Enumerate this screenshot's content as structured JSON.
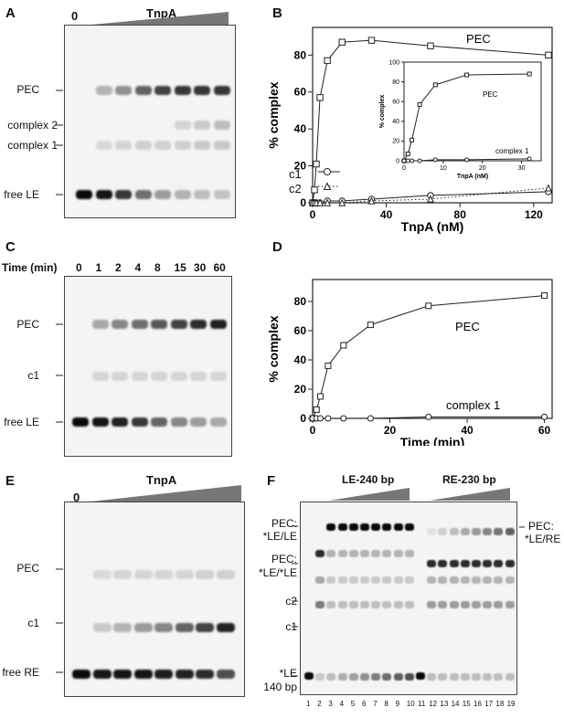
{
  "panels": {
    "A": {
      "letter": "A",
      "zero": "0",
      "protein": "TnpA",
      "bands": {
        "pec": "PEC",
        "complex2": "complex 2",
        "complex1": "complex 1",
        "free": "free LE"
      },
      "band_levels": {
        "pec": [
          0,
          0.25,
          0.4,
          0.6,
          0.75,
          0.8,
          0.8,
          0.8
        ],
        "complex2": [
          0,
          0,
          0,
          0,
          0,
          0.1,
          0.15,
          0.2
        ],
        "complex1": [
          0,
          0.08,
          0.1,
          0.12,
          0.12,
          0.12,
          0.15,
          0.15
        ],
        "free": [
          1,
          0.95,
          0.8,
          0.55,
          0.35,
          0.25,
          0.2,
          0.18
        ]
      }
    },
    "B": {
      "letter": "B",
      "ylabel": "% complex",
      "xlabel": "TnpA (nM)",
      "series_labels": {
        "pec": "PEC",
        "c1": "c1",
        "c2": "c2"
      },
      "inset": {
        "ylabel": "% complex",
        "xlabel": "TnpA (nM)",
        "pec_label": "PEC",
        "c1_label": "complex 1"
      }
    },
    "C": {
      "letter": "C",
      "time_label": "Time (min)",
      "times": [
        "0",
        "1",
        "2",
        "4",
        "8",
        "15",
        "30",
        "60"
      ],
      "bands": {
        "pec": "PEC",
        "c1": "c1",
        "free": "free LE"
      },
      "band_levels": {
        "pec": [
          0,
          0.3,
          0.45,
          0.55,
          0.65,
          0.75,
          0.85,
          0.9
        ],
        "c1": [
          0,
          0.1,
          0.1,
          0.1,
          0.1,
          0.1,
          0.1,
          0.1
        ],
        "free": [
          1,
          0.95,
          0.9,
          0.8,
          0.6,
          0.45,
          0.35,
          0.3
        ]
      }
    },
    "D": {
      "letter": "D",
      "ylabel": "% complex",
      "xlabel": "Time (min)",
      "series_labels": {
        "pec": "PEC",
        "c1": "complex 1"
      }
    },
    "E": {
      "letter": "E",
      "zero": "0",
      "protein": "TnpA",
      "bands": {
        "pec": "PEC",
        "c1": "c1",
        "free": "free RE"
      },
      "band_levels": {
        "pec": [
          0,
          0.08,
          0.1,
          0.1,
          0.1,
          0.1,
          0.12,
          0.12
        ],
        "c1": [
          0,
          0.15,
          0.25,
          0.35,
          0.45,
          0.6,
          0.75,
          0.9
        ],
        "free": [
          1,
          0.95,
          0.95,
          0.95,
          0.92,
          0.9,
          0.85,
          0.7
        ]
      }
    },
    "F": {
      "letter": "F",
      "group_left": "LE-240 bp",
      "group_right": "RE-230 bp",
      "left_labels": {
        "pec_le": "PEC:",
        "pec_le2": "*LE/LE",
        "pec_lele": "PEC:",
        "pec_lele2": "*LE/*LE",
        "c2": "c2",
        "c1": "c1",
        "free1": "*LE",
        "free2": "140 bp"
      },
      "right_labels": {
        "pec": "PEC:",
        "pec2": "*LE/RE"
      },
      "lane_numbers": [
        "1",
        "2",
        "3",
        "4",
        "5",
        "6",
        "7",
        "8",
        "9",
        "10",
        "11",
        "12",
        "13",
        "14",
        "15",
        "16",
        "17",
        "18",
        "19"
      ]
    }
  },
  "chart_data": [
    {
      "type": "line",
      "title": "",
      "xlabel": "TnpA (nM)",
      "ylabel": "% complex",
      "xlim": [
        0,
        130
      ],
      "ylim": [
        0,
        95
      ],
      "xticks": [
        0,
        40,
        80,
        120
      ],
      "yticks": [
        0,
        20,
        40,
        60,
        80
      ],
      "series": [
        {
          "name": "PEC",
          "marker": "square",
          "x": [
            0,
            1,
            2,
            4,
            8,
            16,
            32,
            64,
            128
          ],
          "y": [
            0,
            7,
            21,
            57,
            77,
            87,
            88,
            85,
            80
          ]
        },
        {
          "name": "c1",
          "marker": "circle",
          "x": [
            0,
            1,
            2,
            4,
            8,
            16,
            32,
            64,
            128
          ],
          "y": [
            0,
            0,
            0,
            0,
            1,
            1,
            2,
            4,
            6
          ]
        },
        {
          "name": "c2",
          "marker": "triangle",
          "dashed": true,
          "x": [
            0,
            1,
            2,
            4,
            8,
            16,
            32,
            64,
            128
          ],
          "y": [
            0,
            0,
            0,
            0,
            0,
            0,
            1,
            2,
            8
          ]
        }
      ]
    },
    {
      "type": "line",
      "title": "",
      "xlabel": "TnpA (nM)",
      "ylabel": "% complex",
      "xlim": [
        0,
        35
      ],
      "ylim": [
        0,
        100
      ],
      "xticks": [
        0,
        10,
        20,
        30
      ],
      "yticks": [
        0,
        20,
        40,
        60,
        80,
        100
      ],
      "series": [
        {
          "name": "PEC",
          "marker": "square",
          "x": [
            0,
            1,
            2,
            4,
            8,
            16,
            32
          ],
          "y": [
            0,
            7,
            21,
            57,
            77,
            87,
            88
          ]
        },
        {
          "name": "complex 1",
          "marker": "circle",
          "x": [
            0,
            1,
            2,
            4,
            8,
            16,
            32
          ],
          "y": [
            0,
            0,
            0,
            0,
            1,
            1,
            2
          ]
        }
      ]
    },
    {
      "type": "line",
      "title": "",
      "xlabel": "Time (min)",
      "ylabel": "% complex",
      "xlim": [
        0,
        62
      ],
      "ylim": [
        0,
        95
      ],
      "xticks": [
        0,
        20,
        40,
        60
      ],
      "yticks": [
        0,
        20,
        40,
        60,
        80
      ],
      "series": [
        {
          "name": "PEC",
          "marker": "square",
          "x": [
            0,
            1,
            2,
            4,
            8,
            15,
            30,
            60
          ],
          "y": [
            0,
            6,
            15,
            36,
            50,
            64,
            77,
            84
          ]
        },
        {
          "name": "complex 1",
          "marker": "circle",
          "x": [
            0,
            1,
            2,
            4,
            8,
            15,
            30,
            60
          ],
          "y": [
            0,
            0,
            0,
            0,
            0,
            0,
            1,
            1
          ]
        }
      ]
    }
  ]
}
